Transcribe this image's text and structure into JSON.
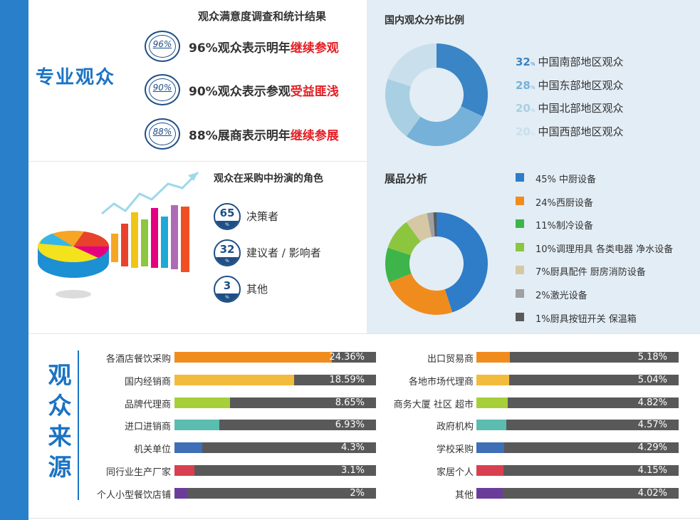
{
  "title_pro": "专业观众",
  "satisfaction": {
    "title": "观众满意度调查和统计结果",
    "items": [
      {
        "badge": "96%",
        "text": "96%观众表示明年",
        "highlight": "继续参观"
      },
      {
        "badge": "90%",
        "text": "90%观众表示参观",
        "highlight": "受益匪浅"
      },
      {
        "badge": "88%",
        "text": "88%展商表示明年",
        "highlight": "继续参展"
      }
    ]
  },
  "distribution": {
    "title": "国内观众分布比例",
    "items": [
      {
        "num": "32",
        "pct": "%",
        "label": "中国南部地区观众",
        "color": "#3a85c6"
      },
      {
        "num": "28",
        "pct": "%",
        "label": "中国东部地区观众",
        "color": "#76b1d9"
      },
      {
        "num": "20",
        "pct": "%",
        "label": "中国北部地区观众",
        "color": "#a9cfe2"
      },
      {
        "num": "20",
        "pct": "%",
        "label": "中国西部地区观众",
        "color": "#c9e0ec"
      }
    ]
  },
  "roles": {
    "title": "观众在采购中扮演的角色",
    "items": [
      {
        "num": "65",
        "pct": "%",
        "label": "决策者"
      },
      {
        "num": "32",
        "pct": "%",
        "label": "建议者 / 影响者"
      },
      {
        "num": "3",
        "pct": "%",
        "label": "其他"
      }
    ]
  },
  "products": {
    "title": "展品分析",
    "items": [
      {
        "label": "45% 中厨设备",
        "color": "#2f7cc9"
      },
      {
        "label": "24%西厨设备",
        "color": "#f08c1e"
      },
      {
        "label": "11%制冷设备",
        "color": "#3db54a"
      },
      {
        "label": "10%调理用具 各类电器 净水设备",
        "color": "#8cc63f"
      },
      {
        "label": "7%厨具配件  厨房消防设备",
        "color": "#d6c8a4"
      },
      {
        "label": "2%激光设备",
        "color": "#a0a0a0"
      },
      {
        "label": "1%厨具按钮开关 保温箱",
        "color": "#5a5a5a"
      }
    ]
  },
  "source": {
    "title_chars": [
      "观",
      "众",
      "来",
      "源"
    ]
  },
  "chart_data": [
    {
      "type": "pie",
      "title": "国内观众分布比例",
      "categories": [
        "中国南部地区观众",
        "中国东部地区观众",
        "中国北部地区观众",
        "中国西部地区观众"
      ],
      "values": [
        32,
        28,
        20,
        20
      ],
      "colors": [
        "#3a85c6",
        "#76b1d9",
        "#a9cfe2",
        "#c9e0ec"
      ]
    },
    {
      "type": "pie",
      "title": "展品分析",
      "categories": [
        "中厨设备",
        "西厨设备",
        "制冷设备",
        "调理用具 各类电器 净水设备",
        "厨具配件 厨房消防设备",
        "激光设备",
        "厨具按钮开关 保温箱"
      ],
      "values": [
        45,
        24,
        11,
        10,
        7,
        2,
        1
      ],
      "colors": [
        "#2f7cc9",
        "#f08c1e",
        "#3db54a",
        "#8cc63f",
        "#d6c8a4",
        "#a0a0a0",
        "#5a5a5a"
      ]
    },
    {
      "type": "bar",
      "title": "观众来源",
      "categories": [
        "各酒店餐饮采购",
        "国内经销商",
        "品牌代理商",
        "进口进销商",
        "机关单位",
        "同行业生产厂家",
        "个人小型餐饮店铺"
      ],
      "values": [
        24.36,
        18.59,
        8.65,
        6.93,
        4.3,
        3.1,
        2
      ],
      "labels": [
        "24.36%",
        "18.59%",
        "8.65%",
        "6.93%",
        "4.3%",
        "3.1%",
        "2%"
      ],
      "colors": [
        "#f08c1e",
        "#f3bb3c",
        "#a6cf3a",
        "#5bbcb0",
        "#3f6fb6",
        "#d9404f",
        "#6a3d9a"
      ],
      "ylim": [
        0,
        100
      ]
    },
    {
      "type": "bar",
      "title": "观众来源",
      "categories": [
        "出口贸易商",
        "各地市场代理商",
        "商务大厦 社区 超市",
        "政府机构",
        "学校采购",
        "家居个人",
        "其他"
      ],
      "values": [
        5.18,
        5.04,
        4.82,
        4.57,
        4.29,
        4.15,
        4.02
      ],
      "labels": [
        "5.18%",
        "5.04%",
        "4.82%",
        "4.57%",
        "4.29%",
        "4.15%",
        "4.02%"
      ],
      "colors": [
        "#f08c1e",
        "#f3bb3c",
        "#a6cf3a",
        "#5bbcb0",
        "#3f6fb6",
        "#d9404f",
        "#6a3d9a"
      ],
      "ylim": [
        0,
        100
      ]
    }
  ]
}
